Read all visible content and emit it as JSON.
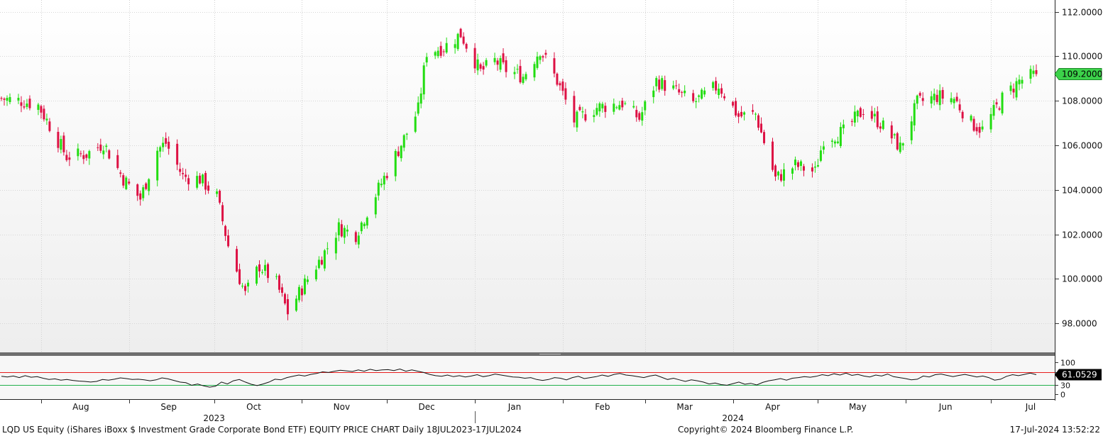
{
  "chart_data": [
    {
      "type": "candlestick",
      "title": "",
      "xlabel": "",
      "ylabel": "",
      "ylim": [
        96.8,
        112.4
      ],
      "yticks": [
        98,
        100,
        102,
        104,
        106,
        108,
        110,
        112
      ],
      "ytick_labels": [
        "98.0000",
        "100.0000",
        "102.0000",
        "104.0000",
        "106.0000",
        "108.0000",
        "110.0000",
        "112.0000"
      ],
      "x_range": [
        "2023-07-18",
        "2024-07-17"
      ],
      "month_labels": [
        {
          "date": "2023-08-15",
          "label": "Aug"
        },
        {
          "date": "2023-09-15",
          "label": "Sep"
        },
        {
          "date": "2023-10-15",
          "label": "Oct"
        },
        {
          "date": "2023-11-15",
          "label": "Nov"
        },
        {
          "date": "2023-12-15",
          "label": "Dec"
        },
        {
          "date": "2024-01-15",
          "label": "Jan"
        },
        {
          "date": "2024-02-15",
          "label": "Feb"
        },
        {
          "date": "2024-03-15",
          "label": "Mar"
        },
        {
          "date": "2024-04-15",
          "label": "Apr"
        },
        {
          "date": "2024-05-15",
          "label": "May"
        },
        {
          "date": "2024-06-15",
          "label": "Jun"
        },
        {
          "date": "2024-07-15",
          "label": "Jul"
        }
      ],
      "year_labels": [
        {
          "date": "2023-10-01",
          "label": "2023"
        },
        {
          "date": "2024-04-01",
          "label": "2024"
        }
      ],
      "year_divider": "2024-01-01",
      "colors": {
        "up": "#22dd11",
        "down": "#dd1144",
        "last_price_bg": "#3cd24a"
      },
      "close_path": [
        [
          "2023-07-18",
          108.1
        ],
        [
          "2023-07-25",
          108.0
        ],
        [
          "2023-07-31",
          107.8
        ],
        [
          "2023-08-04",
          106.9
        ],
        [
          "2023-08-10",
          105.5
        ],
        [
          "2023-08-17",
          105.6
        ],
        [
          "2023-08-23",
          106.1
        ],
        [
          "2023-08-30",
          104.5
        ],
        [
          "2023-09-05",
          103.6
        ],
        [
          "2023-09-11",
          105.8
        ],
        [
          "2023-09-14",
          106.1
        ],
        [
          "2023-09-20",
          104.6
        ],
        [
          "2023-09-26",
          104.5
        ],
        [
          "2023-10-02",
          103.7
        ],
        [
          "2023-10-06",
          101.5
        ],
        [
          "2023-10-12",
          99.3
        ],
        [
          "2023-10-17",
          100.6
        ],
        [
          "2023-10-23",
          99.8
        ],
        [
          "2023-10-27",
          98.5
        ],
        [
          "2023-11-02",
          99.8
        ],
        [
          "2023-11-09",
          101.2
        ],
        [
          "2023-11-14",
          102.3
        ],
        [
          "2023-11-20",
          102.0
        ],
        [
          "2023-11-27",
          103.8
        ],
        [
          "2023-12-01",
          104.8
        ],
        [
          "2023-12-07",
          106.3
        ],
        [
          "2023-12-12",
          107.6
        ],
        [
          "2023-12-15",
          110.2
        ],
        [
          "2023-12-21",
          110.4
        ],
        [
          "2023-12-27",
          111.0
        ],
        [
          "2024-01-03",
          109.3
        ],
        [
          "2024-01-08",
          109.8
        ],
        [
          "2024-01-12",
          109.4
        ],
        [
          "2024-01-18",
          109.1
        ],
        [
          "2024-01-24",
          110.3
        ],
        [
          "2024-01-30",
          108.9
        ],
        [
          "2024-02-05",
          107.1
        ],
        [
          "2024-02-13",
          107.7
        ],
        [
          "2024-02-22",
          107.9
        ],
        [
          "2024-02-28",
          107.2
        ],
        [
          "2024-03-05",
          108.9
        ],
        [
          "2024-03-11",
          108.5
        ],
        [
          "2024-03-18",
          107.9
        ],
        [
          "2024-03-27",
          108.7
        ],
        [
          "2024-04-03",
          107.3
        ],
        [
          "2024-04-09",
          107.4
        ],
        [
          "2024-04-16",
          104.5
        ],
        [
          "2024-04-23",
          105.1
        ],
        [
          "2024-04-30",
          104.8
        ],
        [
          "2024-05-03",
          106.3
        ],
        [
          "2024-05-10",
          106.6
        ],
        [
          "2024-05-17",
          107.6
        ],
        [
          "2024-05-23",
          107.0
        ],
        [
          "2024-05-30",
          105.9
        ],
        [
          "2024-06-05",
          107.9
        ],
        [
          "2024-06-12",
          108.2
        ],
        [
          "2024-06-18",
          108.1
        ],
        [
          "2024-06-24",
          107.0
        ],
        [
          "2024-06-28",
          106.7
        ],
        [
          "2024-07-05",
          108.1
        ],
        [
          "2024-07-11",
          108.9
        ],
        [
          "2024-07-17",
          109.2
        ]
      ],
      "last_price": 109.2,
      "last_price_label": "109.2000"
    },
    {
      "type": "line",
      "title": "",
      "ylim": [
        0,
        100
      ],
      "yticks": [
        0,
        30,
        70,
        100
      ],
      "ytick_labels": [
        "0",
        "30",
        "70",
        "100"
      ],
      "reference_lines": [
        {
          "value": 70,
          "color": "#e81e1e"
        },
        {
          "value": 30,
          "color": "#22b14c"
        }
      ],
      "series": [
        {
          "values": [
            56,
            54,
            57,
            52,
            58,
            53,
            55,
            50,
            46,
            48,
            44,
            46,
            43,
            41,
            40,
            38,
            40,
            46,
            44,
            47,
            51,
            49,
            46,
            47,
            45,
            42,
            45,
            51,
            48,
            43,
            38,
            36,
            28,
            32,
            26,
            22,
            25,
            38,
            32,
            42,
            46,
            38,
            31,
            27,
            32,
            38,
            47,
            45,
            52,
            56,
            60,
            57,
            62,
            65,
            70,
            68,
            72,
            75,
            73,
            71,
            76,
            72,
            78,
            74,
            76,
            77,
            74,
            79,
            72,
            76,
            72,
            68,
            62,
            58,
            56,
            60,
            55,
            58,
            54,
            57,
            61,
            55,
            58,
            63,
            60,
            57,
            54,
            53,
            50,
            52,
            46,
            43,
            46,
            52,
            50,
            45,
            52,
            56,
            49,
            52,
            55,
            60,
            56,
            62,
            65,
            60,
            58,
            55,
            52,
            57,
            60,
            53,
            46,
            50,
            45,
            40,
            45,
            42,
            38,
            32,
            35,
            30,
            28,
            33,
            38,
            31,
            34,
            29,
            37,
            42,
            45,
            49,
            44,
            50,
            52,
            55,
            53,
            56,
            61,
            58,
            64,
            60,
            66,
            59,
            62,
            57,
            54,
            60,
            57,
            63,
            55,
            52,
            49,
            45,
            47,
            57,
            54,
            61,
            63,
            59,
            55,
            59,
            62,
            58,
            54,
            57,
            52,
            44,
            47,
            56,
            61,
            58,
            62,
            66,
            61.05
          ]
        }
      ],
      "last_value": 61.0529,
      "last_value_label": "61.0529"
    }
  ],
  "footer": {
    "chart_title": "LQD US Equity (iShares iBoxx $ Investment Grade Corporate Bond ETF) EQUITY PRICE CHART  Daily 18JUL2023-17JUL2024",
    "copyright": "Copyright© 2024 Bloomberg Finance L.P.",
    "timestamp": "17-Jul-2024 13:52:22"
  }
}
